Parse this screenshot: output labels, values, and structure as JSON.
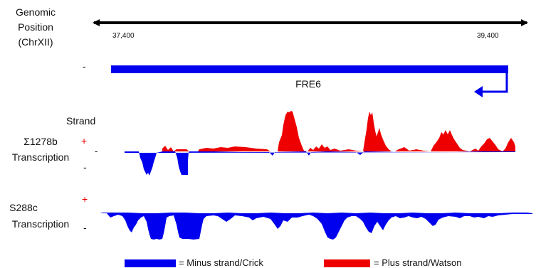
{
  "axis": {
    "label_lines": [
      "Genomic",
      "Position",
      "(ChrXII)"
    ],
    "start_tick": "37,400",
    "end_tick": "39,400"
  },
  "gene": {
    "name": "FRE6",
    "strand_symbol": "-",
    "color": "#0000ee"
  },
  "strand_header": "Strand",
  "tracks": [
    {
      "label_lines": [
        "Σ1278b",
        "Transcription"
      ],
      "plus_symbol": "+",
      "minus_symbol": "-"
    },
    {
      "label_lines": [
        "S288c",
        "Transcription"
      ],
      "plus_symbol": "+",
      "minus_symbol": "-"
    }
  ],
  "legend": {
    "minus_label": "= Minus strand/Crick",
    "plus_label": "= Plus strand/Watson",
    "minus_color": "#0000ee",
    "plus_color": "#ee0000"
  }
}
